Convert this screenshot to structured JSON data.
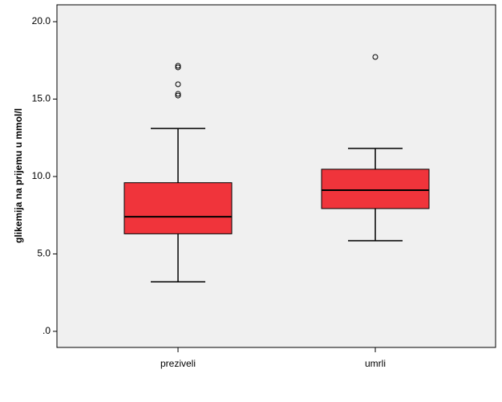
{
  "chart_data": {
    "type": "box",
    "ylabel": "glikemija na prijemu u mmol/l",
    "categories": [
      "preziveli",
      "umrli"
    ],
    "color": "#f0343b",
    "boxes": [
      {
        "min": 3.2,
        "q1": 6.3,
        "median": 7.4,
        "q3": 9.6,
        "max": 13.1,
        "outliers": [
          17.15,
          17.05,
          15.96,
          15.34,
          15.23
        ]
      },
      {
        "min": 5.85,
        "q1": 7.93,
        "median": 9.12,
        "q3": 10.47,
        "max": 11.81,
        "outliers": [
          17.72
        ]
      }
    ],
    "ylim": [
      -1.04,
      21.09
    ],
    "yticks": [
      {
        "value": 0,
        "label": ".0"
      },
      {
        "value": 5,
        "label": "5.0"
      },
      {
        "value": 10,
        "label": "10.0"
      },
      {
        "value": 15,
        "label": "15.0"
      },
      {
        "value": 20,
        "label": "20.0"
      }
    ]
  }
}
